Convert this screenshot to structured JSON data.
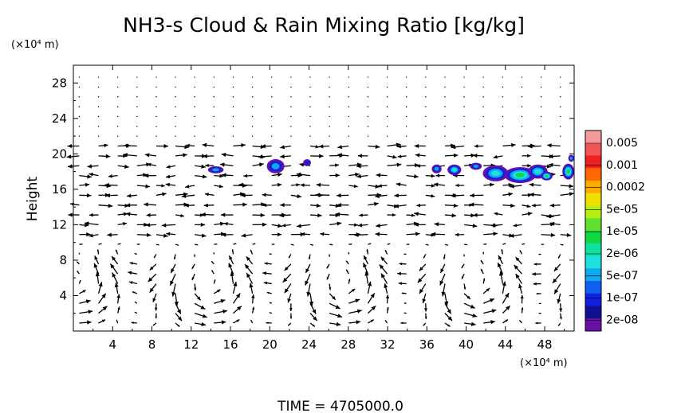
{
  "chart_data": {
    "type": "vector-field-contour",
    "title": "NH3-s Cloud & Rain Mixing Ratio [kg/kg]",
    "ylabel": "Height",
    "xlabel": "",
    "x_unit": "(×10⁴ m)",
    "y_unit": "(×10⁴ m)",
    "xlim": [
      0,
      51
    ],
    "ylim": [
      0,
      30
    ],
    "xticks": [
      4,
      8,
      12,
      16,
      20,
      24,
      28,
      32,
      36,
      40,
      44,
      48
    ],
    "yticks": [
      4,
      8,
      12,
      16,
      20,
      24,
      28
    ],
    "time_label": "TIME  =  4705000.0",
    "colorbar": {
      "labels": [
        "0.005",
        "0.001",
        "0.0002",
        "5e-05",
        "1e-05",
        "2e-06",
        "5e-07",
        "1e-07",
        "2e-08"
      ],
      "colors": [
        "#f59a9a",
        "#f25555",
        "#ee2020",
        "#ff6600",
        "#ffaa00",
        "#f0e000",
        "#b4ee10",
        "#60e030",
        "#10d840",
        "#10e0a0",
        "#20e0e0",
        "#10a8f0",
        "#1060f0",
        "#1020e0",
        "#101090",
        "#6a10a8"
      ]
    },
    "cloud_blobs": [
      {
        "x": 14.5,
        "y": 18.2,
        "rx": 0.8,
        "ry": 0.4,
        "level": 1
      },
      {
        "x": 20.6,
        "y": 18.6,
        "rx": 0.9,
        "ry": 0.8,
        "level": 1
      },
      {
        "x": 23.8,
        "y": 19.0,
        "rx": 0.4,
        "ry": 0.4,
        "level": 0
      },
      {
        "x": 37.0,
        "y": 18.3,
        "rx": 0.5,
        "ry": 0.5,
        "level": 1
      },
      {
        "x": 38.8,
        "y": 18.2,
        "rx": 0.7,
        "ry": 0.6,
        "level": 2
      },
      {
        "x": 41.0,
        "y": 18.6,
        "rx": 0.6,
        "ry": 0.4,
        "level": 1
      },
      {
        "x": 43.0,
        "y": 17.8,
        "rx": 1.3,
        "ry": 0.9,
        "level": 2
      },
      {
        "x": 45.5,
        "y": 17.6,
        "rx": 1.6,
        "ry": 0.9,
        "level": 3
      },
      {
        "x": 47.3,
        "y": 18.0,
        "rx": 1.0,
        "ry": 0.8,
        "level": 2
      },
      {
        "x": 48.2,
        "y": 17.5,
        "rx": 0.6,
        "ry": 0.5,
        "level": 3
      },
      {
        "x": 50.4,
        "y": 18.0,
        "rx": 0.6,
        "ry": 0.9,
        "level": 3
      },
      {
        "x": 50.7,
        "y": 19.5,
        "rx": 0.3,
        "ry": 0.4,
        "level": 1
      }
    ]
  }
}
